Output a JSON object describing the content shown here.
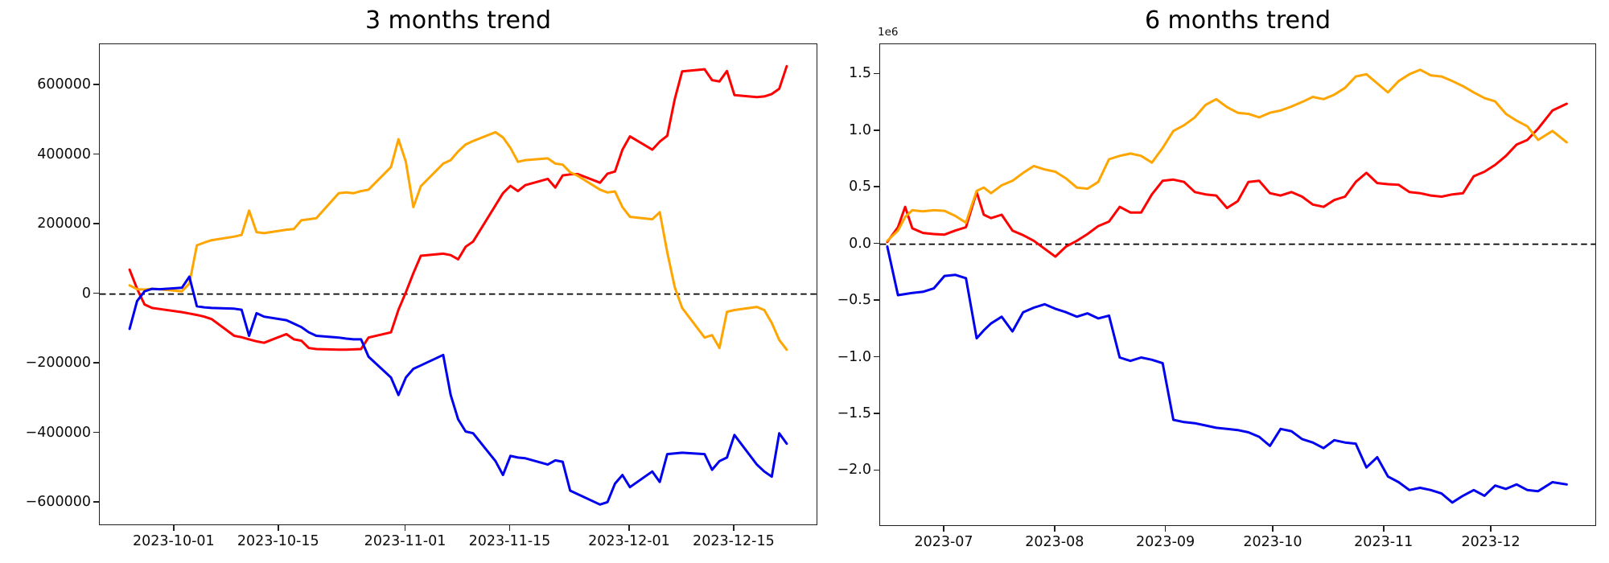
{
  "figure": {
    "background": "#ffffff",
    "zero_line_color": "#000000"
  },
  "charts": [
    {
      "title": "3 months trend",
      "y_offset_label": "",
      "xlim": [
        "2023-09-21",
        "2023-12-26"
      ],
      "ylim": [
        -662000,
        718000
      ],
      "zero_line": 0,
      "yticks": [
        {
          "value": -600000,
          "label": "−600000"
        },
        {
          "value": -400000,
          "label": "−400000"
        },
        {
          "value": -200000,
          "label": "−200000"
        },
        {
          "value": 0,
          "label": "0"
        },
        {
          "value": 200000,
          "label": "200000"
        },
        {
          "value": 400000,
          "label": "400000"
        },
        {
          "value": 600000,
          "label": "600000"
        }
      ],
      "xticks": [
        {
          "date": "2023-10-01",
          "label": "2023-10-01"
        },
        {
          "date": "2023-10-15",
          "label": "2023-10-15"
        },
        {
          "date": "2023-11-01",
          "label": "2023-11-01"
        },
        {
          "date": "2023-11-15",
          "label": "2023-11-15"
        },
        {
          "date": "2023-12-01",
          "label": "2023-12-01"
        },
        {
          "date": "2023-12-15",
          "label": "2023-12-15"
        }
      ],
      "dates": [
        "2023-09-25",
        "2023-09-26",
        "2023-09-27",
        "2023-09-28",
        "2023-09-29",
        "2023-10-02",
        "2023-10-03",
        "2023-10-04",
        "2023-10-05",
        "2023-10-06",
        "2023-10-09",
        "2023-10-10",
        "2023-10-11",
        "2023-10-12",
        "2023-10-13",
        "2023-10-16",
        "2023-10-17",
        "2023-10-18",
        "2023-10-19",
        "2023-10-20",
        "2023-10-23",
        "2023-10-24",
        "2023-10-25",
        "2023-10-26",
        "2023-10-27",
        "2023-10-30",
        "2023-10-31",
        "2023-11-01",
        "2023-11-02",
        "2023-11-03",
        "2023-11-06",
        "2023-11-07",
        "2023-11-08",
        "2023-11-09",
        "2023-11-10",
        "2023-11-13",
        "2023-11-14",
        "2023-11-15",
        "2023-11-16",
        "2023-11-17",
        "2023-11-20",
        "2023-11-21",
        "2023-11-22",
        "2023-11-23",
        "2023-11-24",
        "2023-11-27",
        "2023-11-28",
        "2023-11-29",
        "2023-11-30",
        "2023-12-01",
        "2023-12-04",
        "2023-12-05",
        "2023-12-06",
        "2023-12-07",
        "2023-12-08",
        "2023-12-11",
        "2023-12-12",
        "2023-12-13",
        "2023-12-14",
        "2023-12-15",
        "2023-12-18",
        "2023-12-19",
        "2023-12-20",
        "2023-12-21",
        "2023-12-22"
      ],
      "series": [
        {
          "name": "series-red",
          "color": "#ff0000",
          "values": [
            70000,
            15000,
            -30000,
            -40000,
            -43000,
            -52000,
            -56000,
            -60000,
            -65000,
            -72000,
            -120000,
            -124000,
            -130000,
            -136000,
            -140000,
            -115000,
            -130000,
            -134000,
            -155000,
            -158000,
            -160000,
            -160000,
            -159000,
            -158000,
            -125000,
            -110000,
            -45000,
            5000,
            60000,
            110000,
            116000,
            112000,
            100000,
            136000,
            151000,
            255000,
            290000,
            311000,
            296000,
            313000,
            331000,
            306000,
            341000,
            344000,
            345000,
            320000,
            346000,
            352000,
            415000,
            453000,
            415000,
            438000,
            455000,
            560000,
            640000,
            646000,
            615000,
            611000,
            641000,
            572000,
            566000,
            568000,
            575000,
            590000,
            655000
          ]
        },
        {
          "name": "series-orange",
          "color": "#ffa500",
          "values": [
            25000,
            14000,
            13000,
            15000,
            14000,
            8000,
            30000,
            140000,
            148000,
            155000,
            165000,
            170000,
            240000,
            178000,
            175000,
            185000,
            187000,
            212000,
            215000,
            218000,
            290000,
            292000,
            290000,
            296000,
            300000,
            365000,
            445000,
            380000,
            250000,
            310000,
            375000,
            385000,
            410000,
            430000,
            440000,
            465000,
            450000,
            420000,
            380000,
            385000,
            390000,
            375000,
            372000,
            350000,
            340000,
            300000,
            292000,
            295000,
            250000,
            222000,
            215000,
            235000,
            120000,
            20000,
            -40000,
            -125000,
            -118000,
            -155000,
            -51000,
            -46000,
            -37000,
            -46000,
            -83000,
            -132000,
            -160000
          ]
        },
        {
          "name": "series-blue",
          "color": "#0000ee",
          "values": [
            -100000,
            -20000,
            8000,
            15000,
            14000,
            18000,
            50000,
            -35000,
            -38000,
            -40000,
            -42000,
            -45000,
            -120000,
            -55000,
            -65000,
            -75000,
            -85000,
            -95000,
            -110000,
            -120000,
            -125000,
            -128000,
            -130000,
            -130000,
            -180000,
            -240000,
            -290000,
            -240000,
            -215000,
            -205000,
            -175000,
            -290000,
            -360000,
            -395000,
            -400000,
            -480000,
            -520000,
            -465000,
            -470000,
            -472000,
            -490000,
            -478000,
            -482000,
            -565000,
            -575000,
            -605000,
            -598000,
            -545000,
            -520000,
            -555000,
            -510000,
            -540000,
            -460000,
            -458000,
            -456000,
            -460000,
            -505000,
            -480000,
            -470000,
            -405000,
            -490000,
            -510000,
            -525000,
            -400000,
            -430000
          ]
        }
      ]
    },
    {
      "title": "6 months trend",
      "y_offset_label": "1e6",
      "xlim": [
        "2023-06-13",
        "2023-12-30"
      ],
      "ylim": [
        -2480000,
        1765000
      ],
      "zero_line": 0,
      "yticks": [
        {
          "value": -2000000,
          "label": "−2.0"
        },
        {
          "value": -1500000,
          "label": "−1.5"
        },
        {
          "value": -1000000,
          "label": "−1.0"
        },
        {
          "value": -500000,
          "label": "−0.5"
        },
        {
          "value": 0,
          "label": "0.0"
        },
        {
          "value": 500000,
          "label": "0.5"
        },
        {
          "value": 1000000,
          "label": "1.0"
        },
        {
          "value": 1500000,
          "label": "1.5"
        }
      ],
      "xticks": [
        {
          "date": "2023-07-01",
          "label": "2023-07"
        },
        {
          "date": "2023-08-01",
          "label": "2023-08"
        },
        {
          "date": "2023-09-01",
          "label": "2023-09"
        },
        {
          "date": "2023-10-01",
          "label": "2023-10"
        },
        {
          "date": "2023-11-01",
          "label": "2023-11"
        },
        {
          "date": "2023-12-01",
          "label": "2023-12"
        }
      ],
      "dates": [
        "2023-06-15",
        "2023-06-18",
        "2023-06-20",
        "2023-06-22",
        "2023-06-25",
        "2023-06-28",
        "2023-07-01",
        "2023-07-04",
        "2023-07-07",
        "2023-07-10",
        "2023-07-12",
        "2023-07-14",
        "2023-07-17",
        "2023-07-20",
        "2023-07-23",
        "2023-07-26",
        "2023-07-29",
        "2023-08-01",
        "2023-08-04",
        "2023-08-07",
        "2023-08-10",
        "2023-08-13",
        "2023-08-16",
        "2023-08-19",
        "2023-08-22",
        "2023-08-25",
        "2023-08-28",
        "2023-08-31",
        "2023-09-03",
        "2023-09-06",
        "2023-09-09",
        "2023-09-12",
        "2023-09-15",
        "2023-09-18",
        "2023-09-21",
        "2023-09-24",
        "2023-09-27",
        "2023-09-30",
        "2023-10-03",
        "2023-10-06",
        "2023-10-09",
        "2023-10-12",
        "2023-10-15",
        "2023-10-18",
        "2023-10-21",
        "2023-10-24",
        "2023-10-27",
        "2023-10-30",
        "2023-11-02",
        "2023-11-05",
        "2023-11-08",
        "2023-11-11",
        "2023-11-14",
        "2023-11-17",
        "2023-11-20",
        "2023-11-23",
        "2023-11-26",
        "2023-11-29",
        "2023-12-02",
        "2023-12-05",
        "2023-12-08",
        "2023-12-11",
        "2023-12-14",
        "2023-12-18",
        "2023-12-22"
      ],
      "series": [
        {
          "name": "series-red",
          "color": "#ff0000",
          "values": [
            20000,
            150000,
            330000,
            140000,
            100000,
            90000,
            85000,
            120000,
            150000,
            460000,
            260000,
            230000,
            260000,
            120000,
            80000,
            30000,
            -40000,
            -110000,
            -20000,
            30000,
            90000,
            160000,
            200000,
            330000,
            280000,
            280000,
            440000,
            560000,
            570000,
            550000,
            460000,
            440000,
            430000,
            320000,
            380000,
            550000,
            560000,
            450000,
            430000,
            460000,
            420000,
            350000,
            330000,
            390000,
            420000,
            550000,
            630000,
            540000,
            530000,
            525000,
            460000,
            450000,
            430000,
            420000,
            440000,
            450000,
            600000,
            640000,
            700000,
            780000,
            880000,
            920000,
            1020000,
            1180000,
            1240000
          ]
        },
        {
          "name": "series-orange",
          "color": "#ffa500",
          "values": [
            30000,
            120000,
            240000,
            300000,
            290000,
            300000,
            295000,
            250000,
            190000,
            470000,
            500000,
            450000,
            520000,
            560000,
            630000,
            690000,
            660000,
            640000,
            580000,
            500000,
            490000,
            550000,
            750000,
            780000,
            800000,
            780000,
            720000,
            850000,
            1000000,
            1050000,
            1120000,
            1230000,
            1280000,
            1210000,
            1160000,
            1150000,
            1120000,
            1160000,
            1180000,
            1215000,
            1255000,
            1300000,
            1280000,
            1320000,
            1380000,
            1480000,
            1500000,
            1420000,
            1340000,
            1440000,
            1500000,
            1540000,
            1490000,
            1480000,
            1440000,
            1395000,
            1340000,
            1290000,
            1260000,
            1150000,
            1090000,
            1040000,
            920000,
            1000000,
            900000
          ]
        },
        {
          "name": "series-blue",
          "color": "#0000ee",
          "values": [
            -20000,
            -450000,
            -440000,
            -430000,
            -420000,
            -390000,
            -280000,
            -270000,
            -300000,
            -830000,
            -760000,
            -700000,
            -640000,
            -770000,
            -600000,
            -560000,
            -530000,
            -570000,
            -600000,
            -640000,
            -610000,
            -655000,
            -630000,
            -1000000,
            -1030000,
            -1000000,
            -1020000,
            -1050000,
            -1550000,
            -1570000,
            -1580000,
            -1600000,
            -1620000,
            -1630000,
            -1640000,
            -1660000,
            -1700000,
            -1780000,
            -1630000,
            -1650000,
            -1720000,
            -1750000,
            -1800000,
            -1730000,
            -1750000,
            -1760000,
            -1970000,
            -1880000,
            -2050000,
            -2100000,
            -2170000,
            -2150000,
            -2170000,
            -2200000,
            -2280000,
            -2220000,
            -2170000,
            -2220000,
            -2130000,
            -2160000,
            -2120000,
            -2170000,
            -2180000,
            -2100000,
            -2120000
          ]
        }
      ]
    }
  ]
}
